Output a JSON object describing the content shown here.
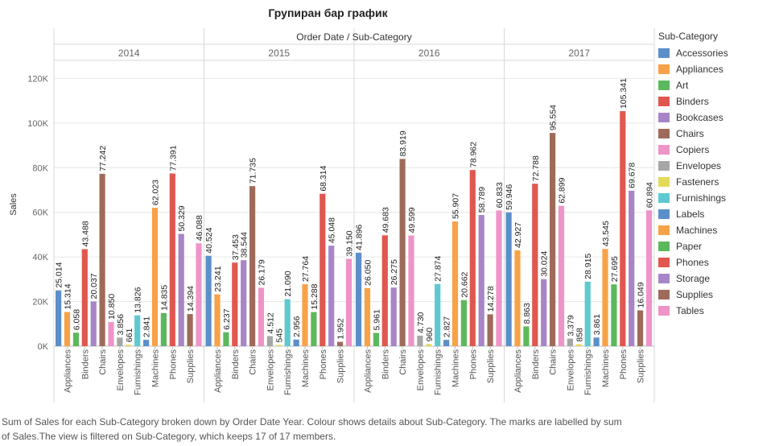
{
  "title": "Групиран бар график",
  "legend": {
    "title": "Sub-Category",
    "items": [
      {
        "label": "Accessories",
        "color": "#5b8fc9"
      },
      {
        "label": "Appliances",
        "color": "#f7a248"
      },
      {
        "label": "Art",
        "color": "#5cb85c"
      },
      {
        "label": "Binders",
        "color": "#e0574f"
      },
      {
        "label": "Bookcases",
        "color": "#a885c6"
      },
      {
        "label": "Chairs",
        "color": "#9e6b5a"
      },
      {
        "label": "Copiers",
        "color": "#ee94c8"
      },
      {
        "label": "Envelopes",
        "color": "#a6a6a6"
      },
      {
        "label": "Fasteners",
        "color": "#e3d95a"
      },
      {
        "label": "Furnishings",
        "color": "#5ec9cf"
      },
      {
        "label": "Labels",
        "color": "#5b8fc9"
      },
      {
        "label": "Machines",
        "color": "#f7a248"
      },
      {
        "label": "Paper",
        "color": "#5cb85c"
      },
      {
        "label": "Phones",
        "color": "#e0574f"
      },
      {
        "label": "Storage",
        "color": "#a885c6"
      },
      {
        "label": "Supplies",
        "color": "#9e6b5a"
      },
      {
        "label": "Tables",
        "color": "#ee94c8"
      }
    ]
  },
  "footer": {
    "line1": "Sum of Sales for each Sub-Category broken down by Order Date Year. Colour shows details about Sub-Category. The marks are labelled by sum",
    "line2": "of Sales.The view is filtered on Sub-Category, which keeps 17 of 17 members."
  },
  "chart_data": {
    "type": "bar",
    "title": "Групиран бар график",
    "header": "Order Date / Sub-Category",
    "ylabel": "Sales",
    "ylim": [
      0,
      127000
    ],
    "yticks": [
      0,
      20000,
      40000,
      60000,
      80000,
      100000,
      120000
    ],
    "ytick_labels": [
      "0K",
      "20K",
      "40K",
      "60K",
      "80K",
      "100K",
      "120K"
    ],
    "grid": true,
    "legend_position": "right",
    "categories": [
      "Accessories",
      "Appliances",
      "Art",
      "Binders",
      "Bookcases",
      "Chairs",
      "Copiers",
      "Envelopes",
      "Fasteners",
      "Furnishings",
      "Labels",
      "Machines",
      "Paper",
      "Phones",
      "Storage",
      "Supplies",
      "Tables"
    ],
    "x_tick_labels": [
      "Appliances",
      "Binders",
      "Chairs",
      "Envelopes",
      "Furnishings",
      "Machines",
      "Phones",
      "Supplies"
    ],
    "years": [
      {
        "year": "2014",
        "values": [
          25014,
          15314,
          6058,
          43488,
          20037,
          77242,
          10850,
          3856,
          661,
          13826,
          2841,
          62023,
          14835,
          77391,
          50329,
          14394,
          46088
        ],
        "labels": [
          "25.014",
          "15.314",
          "6.058",
          "43.488",
          "20.037",
          "77.242",
          "10.850",
          "3.856",
          "661",
          "13.826",
          "2.841",
          "62.023",
          "14.835",
          "77.391",
          "50.329",
          "14.394",
          "46.088"
        ]
      },
      {
        "year": "2015",
        "values": [
          40524,
          23241,
          6237,
          37453,
          38544,
          71735,
          26179,
          4512,
          545,
          21090,
          2956,
          27764,
          15288,
          68314,
          45048,
          1952,
          39150
        ],
        "labels": [
          "40.524",
          "23.241",
          "6.237",
          "37.453",
          "38.544",
          "71.735",
          "26.179",
          "4.512",
          "545",
          "21.090",
          "2.956",
          "27.764",
          "15.288",
          "68.314",
          "45.048",
          "1.952",
          "39.150"
        ]
      },
      {
        "year": "2016",
        "values": [
          41896,
          26050,
          5961,
          49683,
          26275,
          83919,
          49599,
          4730,
          960,
          27874,
          2827,
          55907,
          20662,
          78962,
          58789,
          14278,
          60833
        ],
        "labels": [
          "41.896",
          "26.050",
          "5.961",
          "49.683",
          "26.275",
          "83.919",
          "49.599",
          "4.730",
          "960",
          "27.874",
          "2.827",
          "55.907",
          "20.662",
          "78.962",
          "58.789",
          "14.278",
          "60.833"
        ]
      },
      {
        "year": "2017",
        "values": [
          59946,
          42927,
          8863,
          72788,
          30024,
          95554,
          62899,
          3379,
          858,
          28915,
          3861,
          43545,
          27695,
          105341,
          69678,
          16049,
          60894
        ],
        "labels": [
          "59.946",
          "42.927",
          "8.863",
          "72.788",
          "30.024",
          "95.554",
          "62.899",
          "3.379",
          "858",
          "28.915",
          "3.861",
          "43.545",
          "27.695",
          "105.341",
          "69.678",
          "16.049",
          "60.894"
        ]
      }
    ]
  }
}
